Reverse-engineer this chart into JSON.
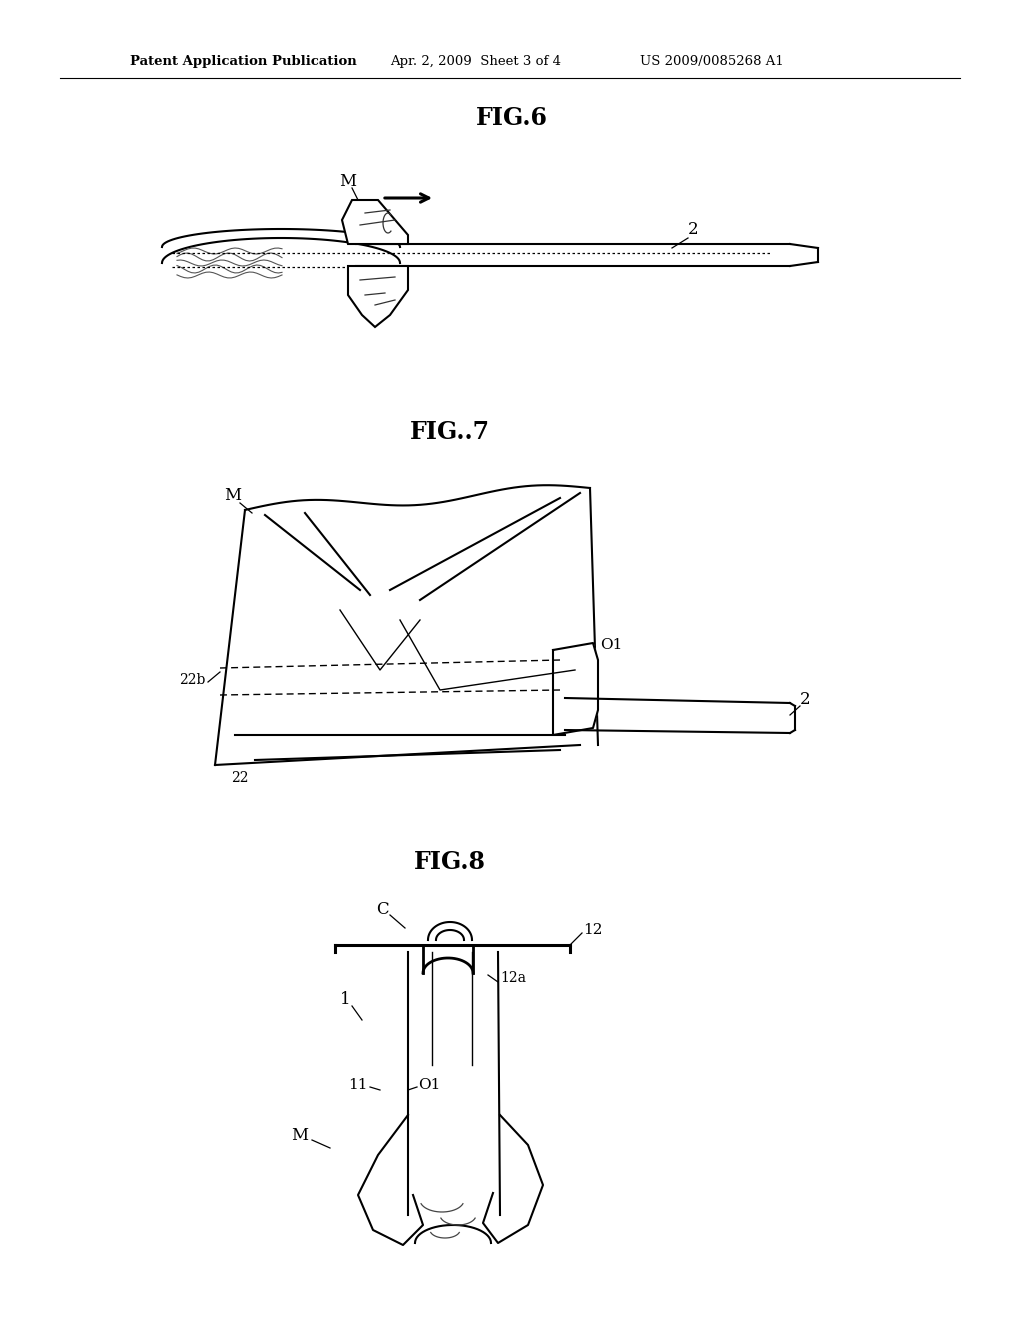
{
  "background_color": "#ffffff",
  "fig_width": 10.24,
  "fig_height": 13.2,
  "header_left": "Patent Application Publication",
  "header_mid": "Apr. 2, 2009  Sheet 3 of 4",
  "header_right": "US 2009/0085268 A1",
  "fig6_title": "FIG.6",
  "fig7_title": "FIG..7",
  "fig8_title": "FIG.8",
  "line_color": "#000000"
}
